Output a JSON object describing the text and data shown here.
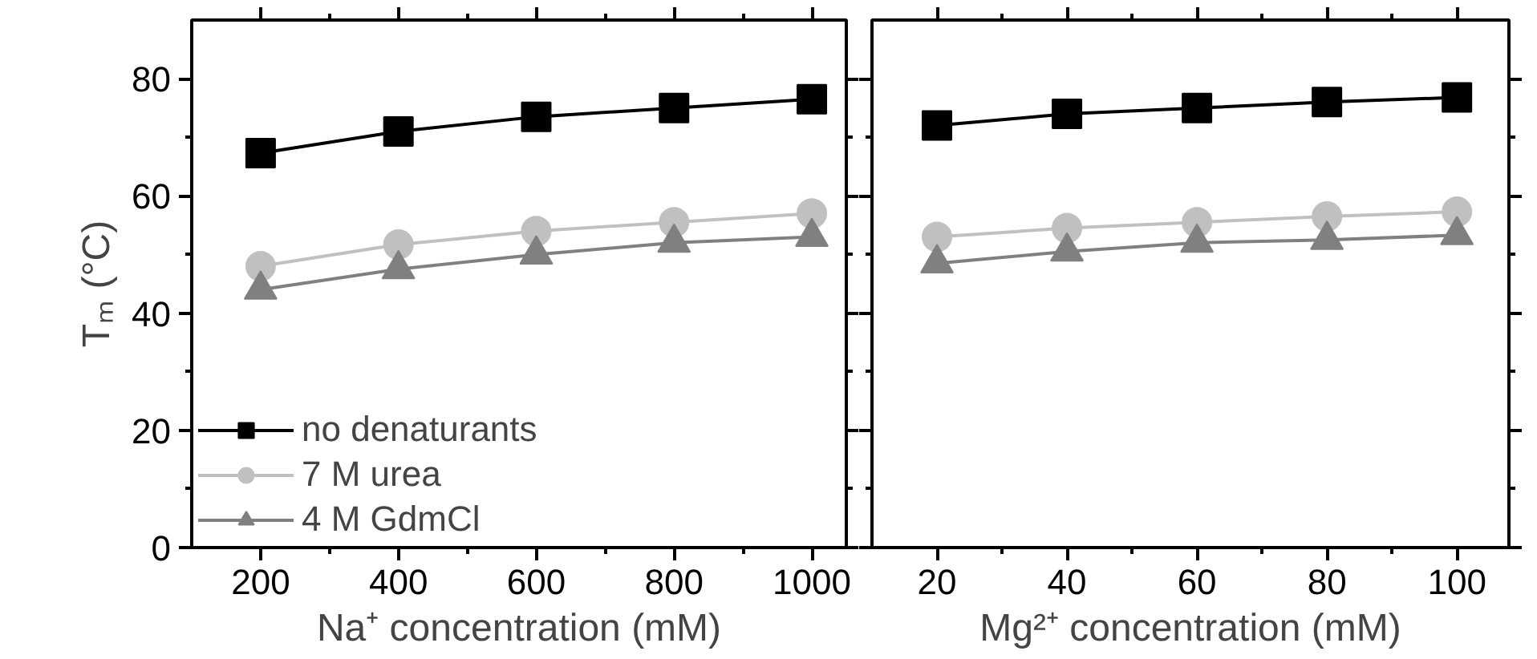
{
  "chart_data": [
    {
      "type": "line",
      "xlabel": "Na⁺ concentration (mM)",
      "ylabel": "Tₘ (°C)",
      "x": [
        200,
        400,
        600,
        800,
        1000
      ],
      "xlim": [
        100,
        1050
      ],
      "xticks": [
        200,
        400,
        600,
        800,
        1000
      ],
      "ylim": [
        0,
        90
      ],
      "yticks": [
        0,
        20,
        40,
        60,
        80
      ],
      "legend": "bottom left",
      "grid": false,
      "series": [
        {
          "name": "no denaturants",
          "color": "#000000",
          "marker": "square",
          "values": [
            67.3,
            71,
            73.5,
            75,
            76.5
          ]
        },
        {
          "name": "7 M urea",
          "color": "#c0c0c0",
          "marker": "circle",
          "values": [
            48,
            51.7,
            54,
            55.5,
            57
          ]
        },
        {
          "name": "4 M GdmCl",
          "color": "#808080",
          "marker": "triangle",
          "values": [
            44,
            47.5,
            50,
            52,
            53
          ]
        }
      ]
    },
    {
      "type": "line",
      "xlabel": "Mg²⁺ concentration (mM)",
      "x": [
        20,
        40,
        60,
        80,
        100
      ],
      "xlim": [
        10,
        108
      ],
      "xticks": [
        20,
        40,
        60,
        80,
        100
      ],
      "ylim": [
        0,
        90
      ],
      "yticks": [
        0,
        20,
        40,
        60,
        80
      ],
      "tick_labels": "x",
      "grid": false,
      "series": [
        {
          "color": "#000000",
          "marker": "square",
          "values": [
            72,
            74,
            75,
            76,
            76.8
          ]
        },
        {
          "color": "#c0c0c0",
          "marker": "circle",
          "values": [
            53,
            54.5,
            55.5,
            56.5,
            57.3
          ]
        },
        {
          "color": "#808080",
          "marker": "triangle",
          "values": [
            48.5,
            50.5,
            52,
            52.5,
            53.3
          ]
        }
      ]
    }
  ]
}
